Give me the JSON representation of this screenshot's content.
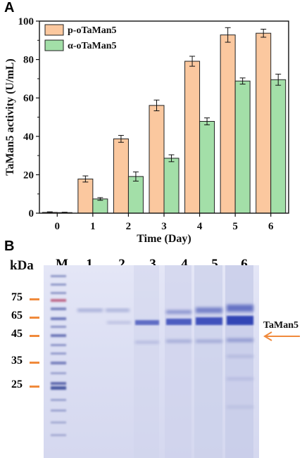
{
  "panel_a_label": "A",
  "panel_b_label": "B",
  "chart_data": {
    "type": "bar",
    "categories": [
      "0",
      "1",
      "2",
      "3",
      "4",
      "5",
      "6"
    ],
    "series": [
      {
        "name": "p-oTaMan5",
        "values": [
          0.4,
          17.8,
          38.7,
          56.1,
          79.1,
          92.8,
          93.7
        ],
        "errors": [
          0.3,
          1.6,
          1.8,
          2.8,
          2.6,
          3.8,
          2.1
        ],
        "color": "#fbc89f"
      },
      {
        "name": "α-oTaMan5",
        "values": [
          0.3,
          7.4,
          19.1,
          28.6,
          47.8,
          68.8,
          69.5
        ],
        "errors": [
          0.2,
          0.7,
          2.4,
          1.8,
          1.8,
          1.6,
          2.9
        ],
        "color": "#a3dfa8"
      }
    ],
    "xlabel": "Time (Day)",
    "ylabel": "TaMan5 activity (U/mL)",
    "ylim": [
      0,
      100
    ],
    "yticks": [
      "0",
      "20",
      "40",
      "60",
      "80",
      "100"
    ],
    "grid": false,
    "legend_position": "top-left"
  },
  "gel": {
    "kda_label": "kDa",
    "lane_labels": [
      "M",
      "1",
      "2",
      "3",
      "4",
      "5",
      "6"
    ],
    "markers": [
      "75",
      "65",
      "45",
      "35",
      "25"
    ],
    "band_label": "TaMan5",
    "marker_color": "#f08a3c",
    "arrow_color": "#f08a3c"
  }
}
